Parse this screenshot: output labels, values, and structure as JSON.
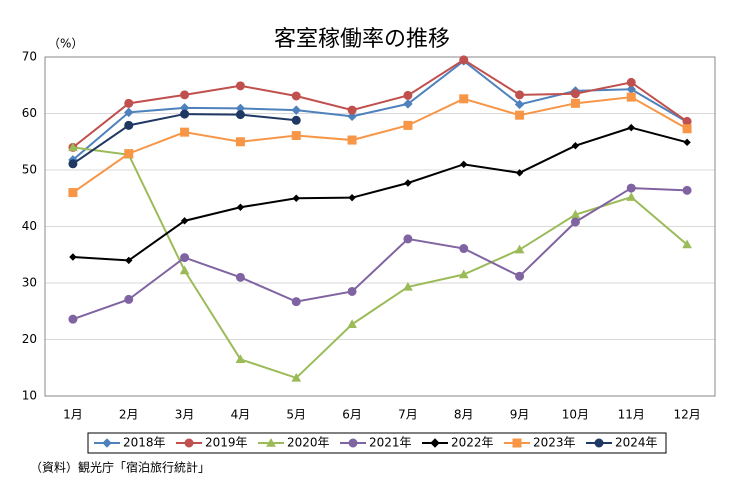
{
  "chart_data": {
    "type": "line",
    "title": "客室稼働率の推移",
    "y_unit": "（%）",
    "source": "（資料）観光庁「宿泊旅行統計」",
    "categories": [
      "1月",
      "2月",
      "3月",
      "4月",
      "5月",
      "6月",
      "7月",
      "8月",
      "9月",
      "10月",
      "11月",
      "12月"
    ],
    "ylim": [
      10,
      70
    ],
    "yticks": [
      10,
      20,
      30,
      40,
      50,
      60,
      70
    ],
    "grid": true,
    "legend": "bottom",
    "series": [
      {
        "name": "2018年",
        "color": "#4f81bd",
        "marker": "diamond",
        "values": [
          51.8,
          60.2,
          61.0,
          60.9,
          60.6,
          59.5,
          61.7,
          69.3,
          61.6,
          64.0,
          64.3,
          58.5
        ]
      },
      {
        "name": "2019年",
        "color": "#c0504d",
        "marker": "circle",
        "values": [
          54.0,
          61.8,
          63.3,
          64.9,
          63.1,
          60.6,
          63.2,
          69.5,
          63.3,
          63.5,
          65.5,
          58.6
        ]
      },
      {
        "name": "2020年",
        "color": "#9bbb59",
        "marker": "triangle",
        "values": [
          54.0,
          52.7,
          32.2,
          16.5,
          13.2,
          22.7,
          29.3,
          31.5,
          35.9,
          42.1,
          45.2,
          36.8
        ]
      },
      {
        "name": "2021年",
        "color": "#8064a2",
        "marker": "circle",
        "values": [
          23.6,
          27.1,
          34.5,
          31.0,
          26.7,
          28.5,
          37.8,
          36.1,
          31.2,
          40.8,
          46.8,
          46.4
        ]
      },
      {
        "name": "2022年",
        "color": "#000000",
        "marker": "diamond",
        "values": [
          34.6,
          34.0,
          41.0,
          43.4,
          45.0,
          45.1,
          47.7,
          51.0,
          49.5,
          54.3,
          57.5,
          54.9
        ]
      },
      {
        "name": "2023年",
        "color": "#f79646",
        "marker": "square",
        "values": [
          46.0,
          52.9,
          56.7,
          55.0,
          56.1,
          55.3,
          57.9,
          62.6,
          59.7,
          61.8,
          62.9,
          57.3
        ]
      },
      {
        "name": "2024年",
        "color": "#1f3864",
        "marker": "circle",
        "values": [
          51.1,
          57.9,
          59.9,
          59.8,
          58.8,
          null,
          null,
          null,
          null,
          null,
          null,
          null
        ]
      }
    ]
  }
}
